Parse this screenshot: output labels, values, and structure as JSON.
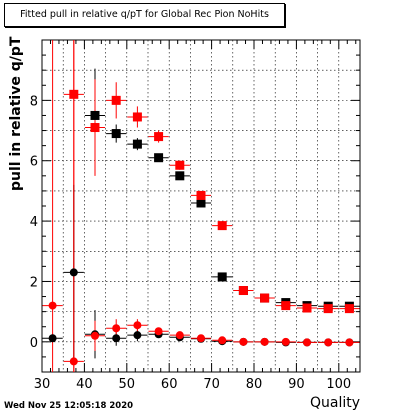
{
  "chart_data": {
    "type": "scatter",
    "title": "Fitted pull in relative q/pT for Global Rec Pion NoHits",
    "xlabel": "Quality",
    "ylabel": "pull in relative q/pT",
    "xlim": [
      30,
      105
    ],
    "ylim": [
      -1,
      10
    ],
    "x_ticks": [
      30,
      40,
      50,
      60,
      70,
      80,
      90,
      100
    ],
    "y_ticks": [
      0,
      2,
      4,
      6,
      8
    ],
    "grid": true,
    "series": [
      {
        "marker": "square",
        "color": "#000000",
        "points": [
          {
            "x": 42.5,
            "y": 7.5,
            "err": 1.55
          },
          {
            "x": 47.5,
            "y": 6.9,
            "err": 0.3
          },
          {
            "x": 52.5,
            "y": 6.55,
            "err": 0.2
          },
          {
            "x": 57.5,
            "y": 6.1,
            "err": 0.12
          },
          {
            "x": 62.5,
            "y": 5.5,
            "err": 0.1
          },
          {
            "x": 67.5,
            "y": 4.6,
            "err": 0.1
          },
          {
            "x": 72.5,
            "y": 2.15,
            "err": 0.05
          },
          {
            "x": 77.5,
            "y": 1.7,
            "err": 0.05
          },
          {
            "x": 82.5,
            "y": 1.45,
            "err": 0.05
          },
          {
            "x": 87.5,
            "y": 1.3,
            "err": 0.04
          },
          {
            "x": 92.5,
            "y": 1.2,
            "err": 0.04
          },
          {
            "x": 97.5,
            "y": 1.18,
            "err": 0.03
          },
          {
            "x": 102.5,
            "y": 1.18,
            "err": 0.03
          }
        ]
      },
      {
        "marker": "square",
        "color": "#ff0000",
        "points": [
          {
            "x": 37.5,
            "y": 8.2,
            "err": 16
          },
          {
            "x": 42.5,
            "y": 7.1,
            "err": 1.6
          },
          {
            "x": 47.5,
            "y": 8.0,
            "err": 0.6
          },
          {
            "x": 52.5,
            "y": 7.45,
            "err": 0.35
          },
          {
            "x": 57.5,
            "y": 6.8,
            "err": 0.2
          },
          {
            "x": 62.5,
            "y": 5.85,
            "err": 0.15
          },
          {
            "x": 67.5,
            "y": 4.85,
            "err": 0.12
          },
          {
            "x": 72.5,
            "y": 3.85,
            "err": 0.08
          },
          {
            "x": 77.5,
            "y": 1.7,
            "err": 0.06
          },
          {
            "x": 82.5,
            "y": 1.45,
            "err": 0.05
          },
          {
            "x": 87.5,
            "y": 1.2,
            "err": 0.05
          },
          {
            "x": 92.5,
            "y": 1.12,
            "err": 0.05
          },
          {
            "x": 97.5,
            "y": 1.1,
            "err": 0.04
          },
          {
            "x": 102.5,
            "y": 1.1,
            "err": 0.04
          }
        ]
      },
      {
        "marker": "circle",
        "color": "#000000",
        "points": [
          {
            "x": 32.5,
            "y": 0.12,
            "err": 0.15
          },
          {
            "x": 37.5,
            "y": 2.3,
            "err": 2.9
          },
          {
            "x": 42.5,
            "y": 0.25,
            "err": 0.8
          },
          {
            "x": 47.5,
            "y": 0.12,
            "err": 0.25
          },
          {
            "x": 52.5,
            "y": 0.22,
            "err": 0.2
          },
          {
            "x": 57.5,
            "y": 0.25,
            "err": 0.1
          },
          {
            "x": 62.5,
            "y": 0.15,
            "err": 0.08
          },
          {
            "x": 67.5,
            "y": 0.1,
            "err": 0.05
          },
          {
            "x": 72.5,
            "y": 0.02,
            "err": 0.04
          },
          {
            "x": 77.5,
            "y": 0.0,
            "err": 0.03
          },
          {
            "x": 82.5,
            "y": 0.0,
            "err": 0.03
          },
          {
            "x": 87.5,
            "y": -0.02,
            "err": 0.03
          },
          {
            "x": 92.5,
            "y": -0.02,
            "err": 0.02
          },
          {
            "x": 97.5,
            "y": -0.02,
            "err": 0.02
          },
          {
            "x": 102.5,
            "y": -0.02,
            "err": 0.02
          }
        ]
      },
      {
        "marker": "circle",
        "color": "#ff0000",
        "points": [
          {
            "x": 32.5,
            "y": 1.2,
            "err": 16
          },
          {
            "x": 37.5,
            "y": -0.65,
            "err": 16
          },
          {
            "x": 42.5,
            "y": 0.2,
            "err": 0.5
          },
          {
            "x": 47.5,
            "y": 0.45,
            "err": 0.3
          },
          {
            "x": 52.5,
            "y": 0.55,
            "err": 0.2
          },
          {
            "x": 57.5,
            "y": 0.35,
            "err": 0.1
          },
          {
            "x": 62.5,
            "y": 0.22,
            "err": 0.08
          },
          {
            "x": 67.5,
            "y": 0.12,
            "err": 0.05
          },
          {
            "x": 72.5,
            "y": 0.05,
            "err": 0.04
          },
          {
            "x": 77.5,
            "y": 0.0,
            "err": 0.03
          },
          {
            "x": 82.5,
            "y": 0.0,
            "err": 0.03
          },
          {
            "x": 87.5,
            "y": 0.0,
            "err": 0.03
          },
          {
            "x": 92.5,
            "y": -0.02,
            "err": 0.02
          },
          {
            "x": 97.5,
            "y": -0.02,
            "err": 0.02
          },
          {
            "x": 102.5,
            "y": -0.02,
            "err": 0.02
          }
        ]
      }
    ]
  },
  "footer": {
    "timestamp": "Wed Nov 25 12:05:18 2020"
  }
}
